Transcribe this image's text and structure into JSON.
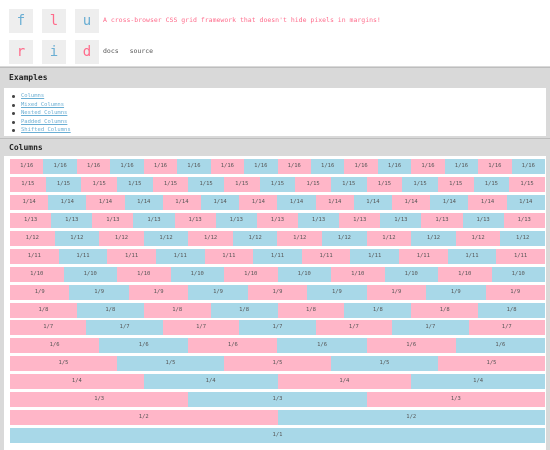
{
  "logo": {
    "letters": [
      "f",
      "l",
      "u",
      "r",
      "i",
      "d"
    ],
    "colors": [
      "#6aaed3",
      "#ff6b8b",
      "#6aaed3",
      "#ff6b8b",
      "#6aaed3",
      "#ff6b8b"
    ]
  },
  "header": {
    "tagline": "A cross-browser CSS grid framework that doesn't hide pixels in margins!",
    "links": [
      "docs",
      "source"
    ]
  },
  "examples": {
    "title": "Examples",
    "items": [
      "Columns",
      "Mixed Columns",
      "Nested Columns",
      "Padded Columns",
      "Shifted Columns"
    ]
  },
  "columns": {
    "title": "Columns",
    "rows": [
      {
        "label": "1/16",
        "count": 16
      },
      {
        "label": "1/15",
        "count": 15
      },
      {
        "label": "1/14",
        "count": 14
      },
      {
        "label": "1/13",
        "count": 13
      },
      {
        "label": "1/12",
        "count": 12
      },
      {
        "label": "1/11",
        "count": 11
      },
      {
        "label": "1/10",
        "count": 10
      },
      {
        "label": "1/9",
        "count": 9
      },
      {
        "label": "1/8",
        "count": 8
      },
      {
        "label": "1/7",
        "count": 7
      },
      {
        "label": "1/6",
        "count": 6
      },
      {
        "label": "1/5",
        "count": 5
      },
      {
        "label": "1/4",
        "count": 4
      },
      {
        "label": "1/3",
        "count": 3
      },
      {
        "label": "1/2",
        "count": 2
      },
      {
        "label": "1/1",
        "count": 1
      }
    ],
    "colors": {
      "pink": "#ffb6c8",
      "blue": "#a8d8e8"
    }
  }
}
